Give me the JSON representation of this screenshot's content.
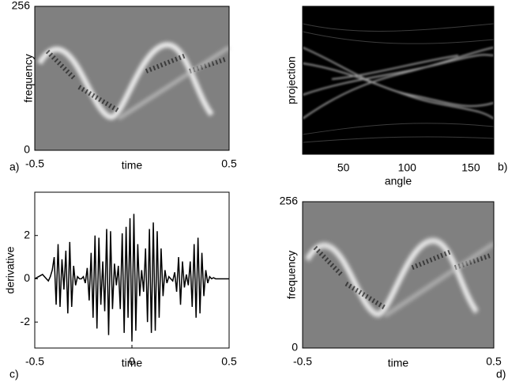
{
  "chart_data": [
    {
      "type": "image",
      "panel_label": "a)",
      "xlabel": "time",
      "ylabel": "frequency",
      "xlim": [
        -0.5,
        0.5
      ],
      "xticks": [
        -0.5,
        0.5
      ],
      "ylim": [
        0,
        256
      ],
      "yticks": [
        0,
        256
      ]
    },
    {
      "type": "image",
      "panel_label": "b)",
      "xlabel": "angle",
      "ylabel": "projection",
      "xlim": [
        18,
        168
      ],
      "xticks": [
        50,
        100,
        150
      ]
    },
    {
      "type": "line",
      "panel_label": "c)",
      "xlabel": "time",
      "ylabel": "derivative",
      "xlim": [
        -0.5,
        0.5
      ],
      "xticks": [
        -0.5,
        0,
        0.5
      ],
      "ylim": [
        -3.2,
        4
      ],
      "yticks": [
        -2,
        0,
        2
      ],
      "color": "#000000",
      "x": [
        -0.5,
        -0.49,
        -0.48,
        -0.47,
        -0.46,
        -0.45,
        -0.44,
        -0.43,
        -0.42,
        -0.41,
        -0.4,
        -0.39,
        -0.38,
        -0.37,
        -0.36,
        -0.35,
        -0.34,
        -0.33,
        -0.32,
        -0.31,
        -0.3,
        -0.29,
        -0.28,
        -0.27,
        -0.26,
        -0.25,
        -0.24,
        -0.23,
        -0.22,
        -0.21,
        -0.2,
        -0.19,
        -0.18,
        -0.17,
        -0.16,
        -0.15,
        -0.14,
        -0.13,
        -0.12,
        -0.11,
        -0.1,
        -0.09,
        -0.08,
        -0.07,
        -0.06,
        -0.05,
        -0.04,
        -0.03,
        -0.02,
        -0.01,
        0,
        0.01,
        0.02,
        0.03,
        0.04,
        0.05,
        0.06,
        0.07,
        0.08,
        0.09,
        0.1,
        0.11,
        0.12,
        0.13,
        0.14,
        0.15,
        0.16,
        0.17,
        0.18,
        0.19,
        0.2,
        0.21,
        0.22,
        0.23,
        0.24,
        0.25,
        0.26,
        0.27,
        0.28,
        0.29,
        0.3,
        0.31,
        0.32,
        0.33,
        0.34,
        0.35,
        0.36,
        0.37,
        0.38,
        0.39,
        0.4,
        0.41,
        0.42,
        0.43,
        0.44,
        0.45,
        0.46,
        0.47,
        0.48,
        0.49,
        0.5
      ],
      "values": [
        0,
        0.05,
        0.1,
        0.15,
        0.2,
        0.1,
        0,
        -0.1,
        0.1,
        0.4,
        1.0,
        -1.2,
        1.6,
        -1.3,
        0.9,
        -0.5,
        1.3,
        -1.6,
        1.7,
        -1.3,
        0.6,
        -0.3,
        0.1,
        0,
        0,
        0.1,
        -0.2,
        0.5,
        -1.0,
        1.2,
        -1.8,
        2.0,
        -2.3,
        1.9,
        -1.2,
        0.8,
        -1.5,
        2.3,
        -2.6,
        2.2,
        -1.4,
        0.7,
        -0.3,
        0.6,
        -1.4,
        2.1,
        -2.5,
        2.4,
        -1.8,
        2.8,
        -2.9,
        3.0,
        -2.4,
        1.6,
        -0.8,
        0.4,
        -0.6,
        1.4,
        -2.0,
        2.3,
        -2.5,
        2.6,
        -2.4,
        2.2,
        -1.8,
        1.4,
        -0.8,
        0.4,
        -0.2,
        0.1,
        0,
        -0.1,
        0.3,
        -0.6,
        1.0,
        -1.2,
        0.8,
        -0.4,
        0.2,
        -0.3,
        0.8,
        -1.3,
        1.6,
        -1.8,
        1.9,
        -1.6,
        1.2,
        -0.8,
        0.4,
        -0.2,
        0.1,
        0,
        0.05,
        0,
        0,
        0,
        0,
        0,
        0,
        0,
        0
      ]
    },
    {
      "type": "image",
      "panel_label": "d)",
      "xlabel": "time",
      "ylabel": "frequency",
      "xlim": [
        -0.5,
        0.5
      ],
      "xticks": [
        -0.5,
        0.5
      ],
      "ylim": [
        0,
        256
      ],
      "yticks": [
        0,
        256
      ]
    }
  ]
}
